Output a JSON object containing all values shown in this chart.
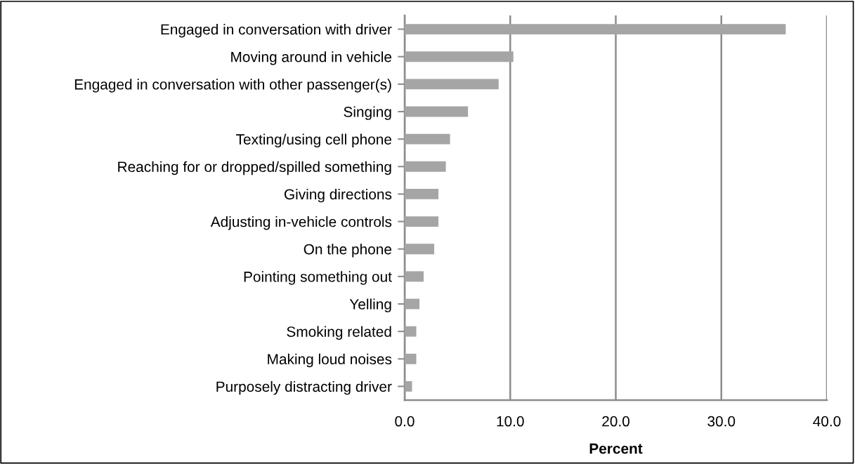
{
  "chart_data": {
    "type": "bar",
    "orientation": "horizontal",
    "xlabel": "Percent",
    "categories": [
      "Engaged in conversation with driver",
      "Moving around in vehicle",
      "Engaged in conversation with other passenger(s)",
      "Singing",
      "Texting/using cell phone",
      "Reaching for or dropped/spilled something",
      "Giving directions",
      "Adjusting in-vehicle controls",
      "On the phone",
      "Pointing something out",
      "Yelling",
      "Smoking related",
      "Making loud noises",
      "Purposely distracting driver"
    ],
    "values": [
      36.1,
      10.3,
      8.9,
      6.0,
      4.3,
      3.9,
      3.2,
      3.2,
      2.8,
      1.8,
      1.4,
      1.1,
      1.1,
      0.7
    ],
    "color": "#a5a5a5",
    "xlim": [
      0,
      40
    ],
    "xticks": [
      {
        "value": 0,
        "label": "0.0"
      },
      {
        "value": 10,
        "label": "10.0"
      },
      {
        "value": 20,
        "label": "20.0"
      },
      {
        "value": 30,
        "label": "30.0"
      },
      {
        "value": 40,
        "label": "40.0"
      }
    ],
    "grid": "x"
  }
}
